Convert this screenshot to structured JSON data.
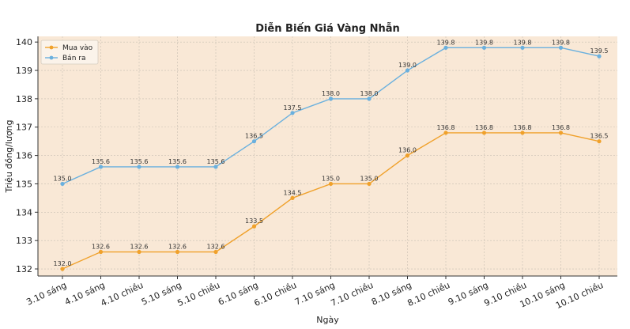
{
  "chart_data": {
    "type": "line",
    "title": "Diễn Biến Giá Vàng Nhẫn",
    "xlabel": "Ngày",
    "ylabel": "Triệu đồng/lượng",
    "categories": [
      "3.10 sáng",
      "4.10 sáng",
      "4.10 chiều",
      "5.10 sáng",
      "5.10 chiều",
      "6.10 sáng",
      "6.10 chiều",
      "7.10 sáng",
      "7.10 chiều",
      "8.10 sáng",
      "8.10 chiều",
      "9.10 sáng",
      "9.10 chiều",
      "10.10 sáng",
      "10.10 chiều"
    ],
    "series": [
      {
        "name": "Mua vào",
        "color": "#f0a12b",
        "values": [
          132.0,
          132.6,
          132.6,
          132.6,
          132.6,
          133.5,
          134.5,
          135.0,
          135.0,
          136.0,
          136.8,
          136.8,
          136.8,
          136.8,
          136.5
        ]
      },
      {
        "name": "Bán ra",
        "color": "#6ab0de",
        "values": [
          135.0,
          135.6,
          135.6,
          135.6,
          135.6,
          136.5,
          137.5,
          138.0,
          138.0,
          139.0,
          139.8,
          139.8,
          139.8,
          139.8,
          139.5
        ]
      }
    ],
    "yticks": [
      132,
      133,
      134,
      135,
      136,
      137,
      138,
      139,
      140
    ],
    "ylim": [
      131.75,
      140.2
    ],
    "grid": true,
    "legend_position": "top-left",
    "plot_background": "#f9e8d6"
  }
}
